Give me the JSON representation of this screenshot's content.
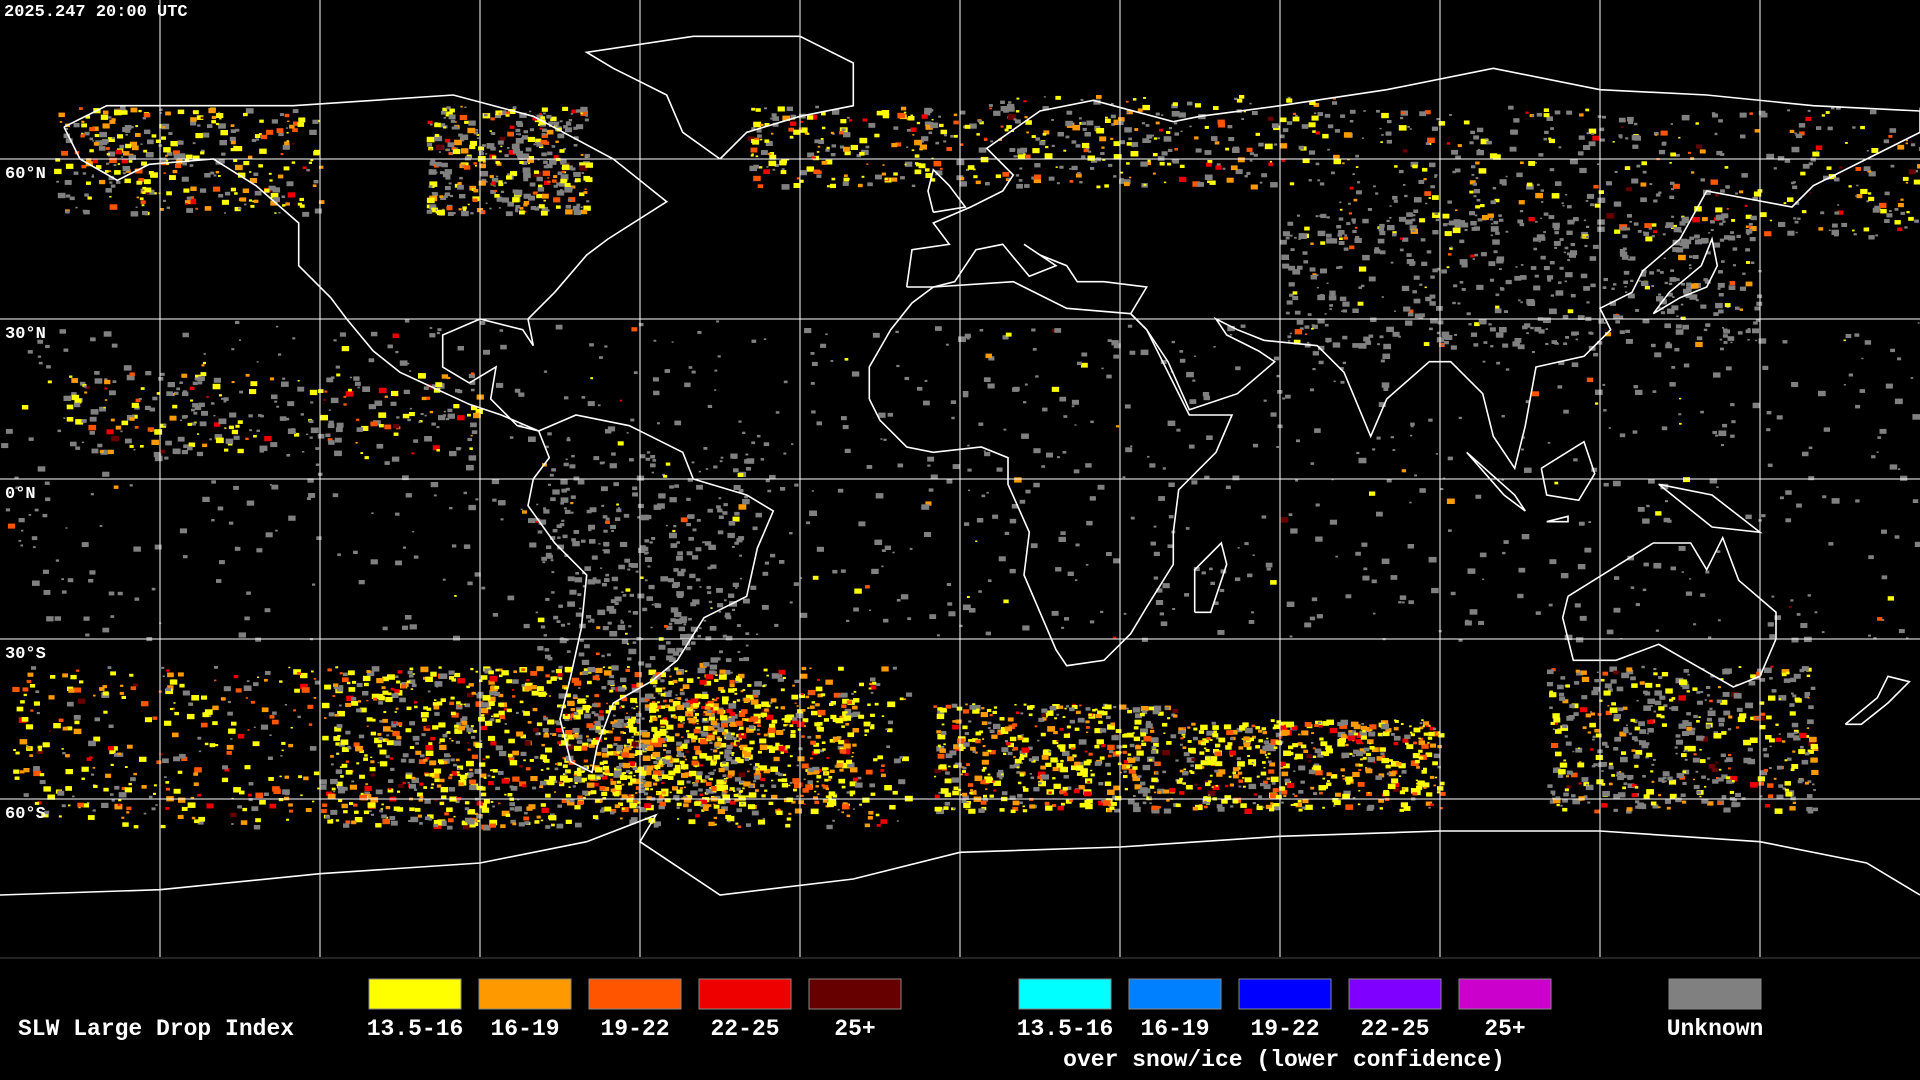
{
  "timestamp": "2025.247 20:00 UTC",
  "latitude_labels": [
    "60°N",
    "30°N",
    "0°N",
    "30°S",
    "60°S"
  ],
  "legend": {
    "title": "SLW Large Drop Index",
    "items": [
      {
        "label": "13.5-16",
        "color": "#ffff00"
      },
      {
        "label": "16-19",
        "color": "#ff9900"
      },
      {
        "label": "19-22",
        "color": "#ff5500"
      },
      {
        "label": "22-25",
        "color": "#ee0000"
      },
      {
        "label": "25+",
        "color": "#660000"
      }
    ],
    "snow_ice_items": [
      {
        "label": "13.5-16",
        "color": "#00ffff"
      },
      {
        "label": "16-19",
        "color": "#0080ff"
      },
      {
        "label": "19-22",
        "color": "#0000ff"
      },
      {
        "label": "22-25",
        "color": "#8000ff"
      },
      {
        "label": "25+",
        "color": "#cc00cc"
      }
    ],
    "snow_ice_caption": "over snow/ice (lower confidence)",
    "unknown": {
      "label": "Unknown",
      "color": "#808080"
    }
  }
}
